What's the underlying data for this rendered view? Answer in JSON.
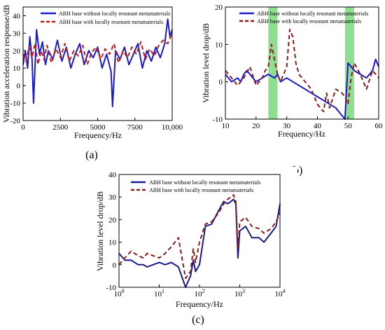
{
  "chart_data": [
    {
      "type": "line",
      "panel_label": "(a)",
      "xlabel": "Frequency/Hz",
      "ylabel": "Vibration acceleration response/dB",
      "xlim": [
        0,
        10000
      ],
      "ylim": [
        -20,
        45
      ],
      "xticks": [
        0,
        2500,
        5000,
        7500,
        10000
      ],
      "xtick_labels": [
        "0",
        "2500",
        "5000",
        "7500",
        "10,000"
      ],
      "yticks": [
        -20,
        -10,
        0,
        10,
        20,
        30,
        40
      ],
      "ytick_labels": [
        "-20",
        "-10",
        "0",
        "10",
        "20",
        "30",
        "40"
      ],
      "legend_position": "top",
      "series": [
        {
          "name": "ABH base without locally resonant metamaterials",
          "color": "#1a1acc",
          "style": "solid",
          "x": [
            0,
            150,
            300,
            450,
            600,
            700,
            900,
            1100,
            1300,
            1500,
            1700,
            2000,
            2300,
            2600,
            2900,
            3200,
            3500,
            3800,
            4100,
            4400,
            4700,
            5000,
            5300,
            5600,
            5900,
            6000,
            6200,
            6500,
            6800,
            7100,
            7400,
            7700,
            8000,
            8300,
            8600,
            8900,
            9200,
            9500,
            9700,
            9850,
            10000
          ],
          "y": [
            12,
            20,
            10,
            28,
            15,
            -10,
            32,
            18,
            25,
            12,
            20,
            15,
            26,
            14,
            22,
            10,
            18,
            24,
            12,
            20,
            16,
            22,
            10,
            18,
            8,
            -12,
            20,
            15,
            22,
            12,
            18,
            24,
            10,
            20,
            14,
            22,
            16,
            24,
            38,
            28,
            32
          ]
        },
        {
          "name": "ABH base with locally resonant metamaterials",
          "color": "#c01a1a",
          "style": "dashed",
          "x": [
            0,
            200,
            400,
            600,
            800,
            1000,
            1200,
            1400,
            1600,
            1900,
            2200,
            2500,
            2800,
            3100,
            3400,
            3700,
            4000,
            4300,
            4600,
            4900,
            5200,
            5500,
            5800,
            6100,
            6400,
            6700,
            7000,
            7300,
            7600,
            7900,
            8200,
            8500,
            8800,
            9100,
            9400,
            9700,
            10000
          ],
          "y": [
            18,
            14,
            22,
            16,
            24,
            12,
            20,
            15,
            23,
            13,
            21,
            16,
            24,
            14,
            20,
            17,
            23,
            12,
            19,
            22,
            15,
            21,
            18,
            24,
            13,
            20,
            16,
            22,
            18,
            25,
            15,
            21,
            17,
            23,
            26,
            24,
            30
          ]
        }
      ]
    },
    {
      "type": "line",
      "panel_label": "(b)",
      "xlabel": "Frequency/Hz",
      "ylabel": "Vibration level drop/dB",
      "xlim": [
        10,
        60
      ],
      "ylim": [
        -10,
        20
      ],
      "xticks": [
        10,
        20,
        30,
        40,
        50,
        60
      ],
      "yticks": [
        -10,
        0,
        10,
        20
      ],
      "bands": [
        [
          24,
          27
        ],
        [
          49,
          52
        ]
      ],
      "band_color": "#7dd87d",
      "legend_position": "top-right",
      "series": [
        {
          "name": "ABH base without locally resonant metamaterials",
          "color": "#1a1acc",
          "style": "solid",
          "x": [
            10,
            12,
            14,
            15,
            16,
            17,
            18,
            19,
            20,
            22,
            24,
            26,
            27,
            28,
            30,
            32,
            34,
            36,
            38,
            40,
            42,
            44,
            46,
            48,
            49,
            50,
            51,
            52,
            54,
            56,
            58,
            59,
            60
          ],
          "y": [
            2,
            0,
            1,
            0,
            2,
            3,
            2,
            1,
            0,
            1,
            2,
            1,
            2,
            0,
            1,
            0,
            -1,
            -2,
            -3,
            -4,
            -5,
            -6,
            -7,
            -9,
            -10,
            5,
            4,
            3,
            2,
            1,
            3,
            6,
            4
          ]
        },
        {
          "name": "ABH base with locally resonant metamaterials",
          "color": "#8b1a1a",
          "style": "dashed",
          "x": [
            10,
            12,
            14,
            16,
            18,
            20,
            22,
            23,
            24,
            25,
            26,
            27,
            28,
            30,
            31,
            32,
            33,
            34,
            36,
            38,
            40,
            42,
            43,
            44,
            46,
            48,
            49,
            50,
            51,
            52,
            54,
            56,
            58,
            60
          ],
          "y": [
            3,
            1,
            -1,
            1,
            4,
            -1,
            1,
            3,
            4,
            10,
            6,
            2,
            0,
            4,
            14,
            12,
            5,
            2,
            0,
            -2,
            -6,
            -8,
            -3,
            -7,
            -2,
            -3,
            -4,
            -6,
            1,
            5,
            2,
            -2,
            3,
            1
          ]
        }
      ]
    },
    {
      "type": "line",
      "panel_label": "(c)",
      "xlabel": "Frequency/Hz",
      "ylabel": "Vibration level drop/dB",
      "xscale": "log",
      "xlim": [
        1,
        10000
      ],
      "ylim": [
        -10,
        40
      ],
      "xticks": [
        1,
        10,
        100,
        1000,
        10000
      ],
      "xtick_labels": [
        "10^0",
        "10^1",
        "10^2",
        "10^3",
        "10^4"
      ],
      "yticks": [
        -10,
        0,
        10,
        20,
        30,
        40
      ],
      "legend_position": "top-left",
      "series": [
        {
          "name": "ABH base without locally resonant metamaterials",
          "color": "#1a1a8c",
          "style": "solid",
          "x": [
            1,
            1.4,
            2,
            3,
            4,
            5,
            7,
            10,
            14,
            20,
            30,
            45,
            60,
            70,
            80,
            100,
            140,
            200,
            300,
            400,
            500,
            600,
            700,
            800,
            900,
            1000,
            1400,
            2000,
            3000,
            4000,
            6000,
            8000,
            10000
          ],
          "y": [
            5,
            2,
            2,
            0,
            0,
            -1,
            0,
            1,
            0,
            1,
            -1,
            -10,
            -5,
            2,
            -3,
            0,
            17,
            18,
            24,
            28,
            27,
            28,
            29,
            27,
            3,
            15,
            17,
            12,
            12,
            10,
            14,
            17,
            27
          ]
        },
        {
          "name": "ABH base with locally resonant metamaterials",
          "color": "#8b1a1a",
          "style": "dashed",
          "x": [
            1,
            1.4,
            2,
            3,
            4,
            5,
            7,
            10,
            14,
            20,
            30,
            45,
            60,
            70,
            80,
            100,
            140,
            200,
            300,
            400,
            500,
            600,
            700,
            800,
            900,
            1000,
            1400,
            2000,
            3000,
            4000,
            6000,
            8000,
            10000
          ],
          "y": [
            0,
            3,
            6,
            4,
            3,
            5,
            4,
            3,
            5,
            8,
            12,
            -6,
            -3,
            7,
            1,
            10,
            18,
            19,
            23,
            27,
            29,
            30,
            31,
            28,
            7,
            19,
            21,
            17,
            16,
            14,
            16,
            19,
            23
          ]
        }
      ]
    }
  ]
}
